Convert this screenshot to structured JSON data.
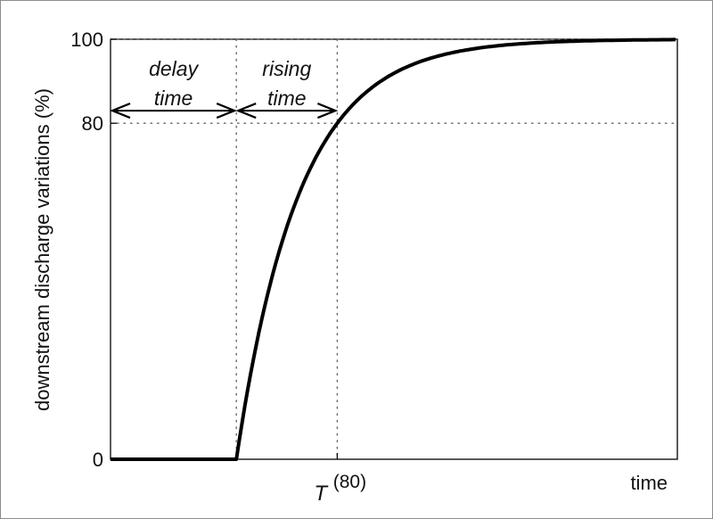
{
  "chart_data": {
    "type": "line",
    "ylabel": "downstream discharge variations (%)",
    "xlabel": "time",
    "ylim": [
      0,
      100
    ],
    "xlim": [
      0,
      1
    ],
    "yticks": [
      0,
      80,
      100
    ],
    "ytick_labels": [
      "0",
      "80",
      "100"
    ],
    "grid": false,
    "series": [
      {
        "color": "#000000",
        "x": [
          0.0,
          0.222,
          0.25,
          0.3,
          0.35,
          0.4,
          0.45,
          0.5,
          0.55,
          0.6,
          0.65,
          0.7,
          0.75,
          0.8,
          0.85,
          0.9,
          0.95,
          1.0
        ],
        "y": [
          0,
          0,
          21.6,
          50.0,
          67.2,
          78.7,
          86.1,
          90.9,
          94.1,
          96.2,
          97.5,
          98.4,
          98.9,
          99.3,
          99.5,
          99.7,
          99.8,
          99.9
        ]
      }
    ],
    "reference_lines": [
      {
        "orientation": "vertical",
        "x": 0.222,
        "style": "dotted"
      },
      {
        "orientation": "vertical",
        "x": 0.4,
        "style": "dotted"
      },
      {
        "orientation": "horizontal",
        "y": 80,
        "style": "dotted"
      },
      {
        "orientation": "horizontal",
        "y": 100,
        "style": "dotted"
      }
    ],
    "x_markers": [
      {
        "x": 0.4,
        "label": "T",
        "superscript": "(80)"
      }
    ],
    "annotations": [
      {
        "label_line1": "delay",
        "label_line2": "time",
        "from_x": 0.0,
        "to_x": 0.222,
        "y": 83,
        "style": "double-arrow"
      },
      {
        "label_line1": "rising",
        "label_line2": "time",
        "from_x": 0.222,
        "to_x": 0.4,
        "y": 83,
        "style": "double-arrow"
      }
    ]
  }
}
